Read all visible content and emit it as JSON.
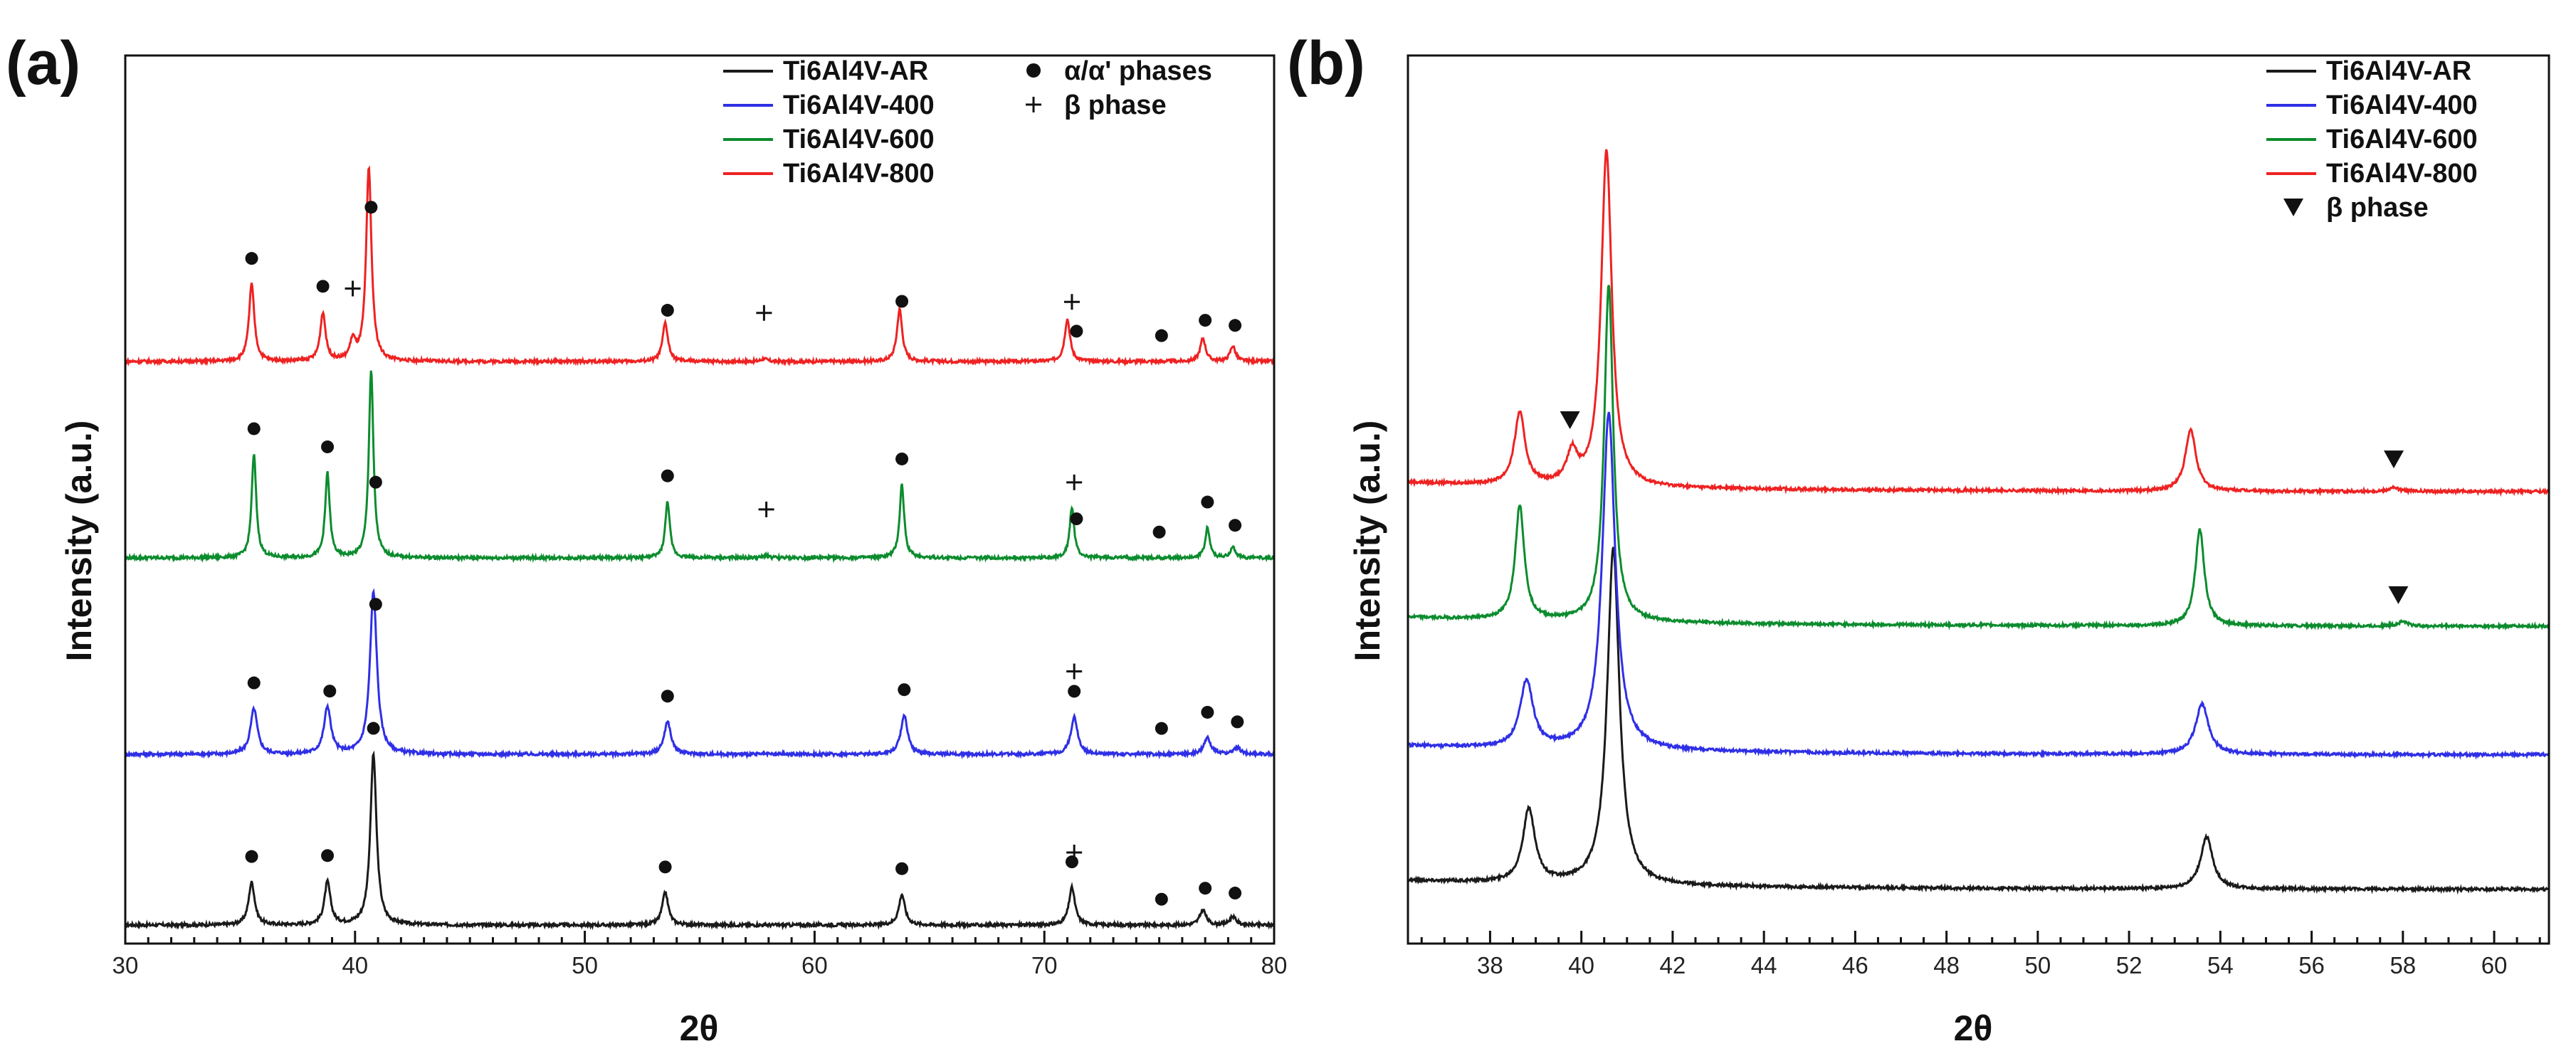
{
  "chart_data": [
    {
      "panel": "a",
      "panel_label": "(a)",
      "type": "line",
      "xlabel": "2θ",
      "ylabel": "Intensity (a.u.)",
      "xlim": [
        30,
        80
      ],
      "xticks": [
        30,
        40,
        50,
        60,
        70,
        80
      ],
      "legend_position": "top-right",
      "series": [
        {
          "name": "Ti6Al4V-AR",
          "color": "#1a1a1a",
          "offset": 0.0,
          "scale": 1.0,
          "width": 0.16,
          "peaks": [
            [
              35.5,
              0.25
            ],
            [
              38.8,
              0.25
            ],
            [
              40.8,
              1.0
            ],
            [
              53.5,
              0.19
            ],
            [
              63.8,
              0.18
            ],
            [
              71.2,
              0.22
            ],
            [
              76.9,
              0.09
            ],
            [
              78.2,
              0.05
            ]
          ]
        },
        {
          "name": "Ti6Al4V-400",
          "color": "#2f2fe6",
          "offset": 1.0,
          "scale": 0.95,
          "width": 0.18,
          "peaks": [
            [
              35.6,
              0.28
            ],
            [
              38.8,
              0.29
            ],
            [
              40.8,
              1.0
            ],
            [
              53.6,
              0.2
            ],
            [
              63.9,
              0.24
            ],
            [
              71.3,
              0.23
            ],
            [
              77.1,
              0.1
            ],
            [
              78.4,
              0.04
            ]
          ]
        },
        {
          "name": "Ti6Al4V-600",
          "color": "#0c8c2e",
          "offset": 2.15,
          "scale": 1.1,
          "width": 0.12,
          "peaks": [
            [
              35.6,
              0.55
            ],
            [
              38.8,
              0.45
            ],
            [
              40.7,
              1.0
            ],
            [
              53.6,
              0.3
            ],
            [
              63.8,
              0.39
            ],
            [
              71.2,
              0.27
            ],
            [
              77.1,
              0.16
            ],
            [
              78.2,
              0.06
            ],
            [
              57.9,
              0.015
            ]
          ]
        },
        {
          "name": "Ti6Al4V-800",
          "color": "#ee2222",
          "offset": 3.3,
          "scale": 1.13,
          "width": 0.14,
          "peaks": [
            [
              35.5,
              0.4
            ],
            [
              38.6,
              0.25
            ],
            [
              39.9,
              0.1
            ],
            [
              40.6,
              1.0
            ],
            [
              53.5,
              0.2
            ],
            [
              63.7,
              0.27
            ],
            [
              71.0,
              0.22
            ],
            [
              76.9,
              0.12
            ],
            [
              78.2,
              0.08
            ],
            [
              57.8,
              0.015
            ]
          ]
        }
      ],
      "markers": [
        {
          "series": 0,
          "symbol": "dot",
          "x": [
            35.5,
            38.8,
            40.8,
            53.5,
            63.8,
            71.2,
            75.1,
            77.0,
            78.3
          ]
        },
        {
          "series": 0,
          "symbol": "plus",
          "x": [
            71.3
          ]
        },
        {
          "series": 1,
          "symbol": "dot",
          "x": [
            35.6,
            38.9,
            40.9,
            53.6,
            63.9,
            71.3,
            75.1,
            77.1,
            78.4
          ]
        },
        {
          "series": 1,
          "symbol": "plus",
          "x": [
            71.3
          ]
        },
        {
          "series": 2,
          "symbol": "dot",
          "x": [
            35.6,
            38.8,
            40.9,
            53.6,
            63.8,
            71.4,
            75.0,
            77.1,
            78.3
          ]
        },
        {
          "series": 2,
          "symbol": "plus",
          "x": [
            57.9,
            71.3
          ]
        },
        {
          "series": 3,
          "symbol": "dot",
          "x": [
            35.5,
            38.6,
            40.7,
            53.6,
            63.8,
            71.4,
            75.1,
            77.0,
            78.3
          ]
        },
        {
          "series": 3,
          "symbol": "plus",
          "x": [
            39.9,
            57.8,
            71.2
          ]
        }
      ],
      "phase_legend": [
        {
          "symbol": "dot",
          "label": "α/α' phases"
        },
        {
          "symbol": "plus",
          "label": "β phase"
        }
      ]
    },
    {
      "panel": "b",
      "panel_label": "(b)",
      "type": "line",
      "xlabel": "2θ",
      "ylabel": "Intensity (a.u.)",
      "xlim": [
        36.2,
        61.2
      ],
      "xticks": [
        38,
        40,
        42,
        44,
        46,
        48,
        50,
        52,
        54,
        56,
        58,
        60
      ],
      "legend_position": "top-right",
      "series": [
        {
          "name": "Ti6Al4V-AR",
          "color": "#1a1a1a",
          "offset": 0.0,
          "scale": 1.0,
          "width": 0.16,
          "peaks": [
            [
              38.85,
              0.48
            ],
            [
              40.7,
              2.2
            ],
            [
              53.7,
              0.34
            ],
            [
              58.0,
              0.0
            ]
          ]
        },
        {
          "name": "Ti6Al4V-400",
          "color": "#2f2fe6",
          "offset": 0.88,
          "scale": 1.0,
          "width": 0.17,
          "peaks": [
            [
              38.8,
              0.44
            ],
            [
              40.6,
              2.2
            ],
            [
              53.6,
              0.33
            ]
          ]
        },
        {
          "name": "Ti6Al4V-600",
          "color": "#0c8c2e",
          "offset": 1.72,
          "scale": 1.0,
          "width": 0.12,
          "peaks": [
            [
              38.65,
              0.75
            ],
            [
              40.6,
              2.2
            ],
            [
              53.55,
              0.63
            ],
            [
              58.0,
              0.03
            ]
          ]
        },
        {
          "name": "Ti6Al4V-800",
          "color": "#ee2222",
          "offset": 2.6,
          "scale": 1.0,
          "width": 0.14,
          "peaks": [
            [
              38.65,
              0.47
            ],
            [
              39.8,
              0.2
            ],
            [
              40.55,
              2.2
            ],
            [
              53.35,
              0.4
            ],
            [
              57.8,
              0.025
            ]
          ]
        }
      ],
      "markers": [
        {
          "series": 3,
          "symbol": "triangle",
          "x": [
            39.75,
            57.8
          ]
        },
        {
          "series": 2,
          "symbol": "triangle",
          "x": [
            57.9
          ]
        }
      ],
      "phase_legend": [
        {
          "symbol": "triangle",
          "label": "β phase"
        }
      ]
    }
  ]
}
